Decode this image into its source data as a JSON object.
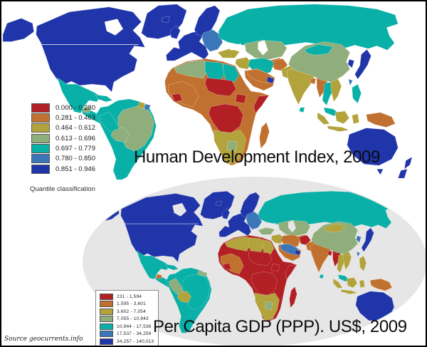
{
  "palette": {
    "q1_red": "#b22025",
    "q2_orange": "#c1712f",
    "q3_olive": "#b3a33c",
    "q4_sage": "#8fae7c",
    "q5_teal": "#09b0a7",
    "q6_blue": "#3b76b8",
    "q7_darkblue": "#1f35a9",
    "ocean_top": "#ffffff",
    "globe_background": "#e6e6e6"
  },
  "hdi_map": {
    "title": "Human Development Index, 2009",
    "note": "Quantile classification",
    "legend": [
      {
        "range": "0.000 - 0.280",
        "color": "#b22025"
      },
      {
        "range": "0.281 - 0.463",
        "color": "#c1712f"
      },
      {
        "range": "0.464 - 0.612",
        "color": "#b3a33c"
      },
      {
        "range": "0.613 - 0.696",
        "color": "#8fae7c"
      },
      {
        "range": "0.697 - 0.779",
        "color": "#09b0a7"
      },
      {
        "range": "0.780 - 0.850",
        "color": "#3b76b8"
      },
      {
        "range": "0.851 - 0.946",
        "color": "#1f35a9"
      }
    ]
  },
  "gdp_map": {
    "title": "Per Capita GDP (PPP). US$, 2009",
    "legend": [
      {
        "range": "231 - 1,594",
        "color": "#b22025"
      },
      {
        "range": "1,595 - 3,601",
        "color": "#c1712f"
      },
      {
        "range": "3,602 - 7,054",
        "color": "#b3a33c"
      },
      {
        "range": "7,055 - 10,943",
        "color": "#8fae7c"
      },
      {
        "range": "10,944 - 17,536",
        "color": "#09b0a7"
      },
      {
        "range": "17,537 - 34,256",
        "color": "#3b76b8"
      },
      {
        "range": "34,257 - 140,013",
        "color": "#1f35a9"
      }
    ]
  },
  "source": "Source geocurrents.info",
  "regions": [
    {
      "id": "greenland",
      "hdi": "#1f35a9",
      "gdp": "#1f35a9"
    },
    {
      "id": "alaska",
      "hdi": "#1f35a9",
      "gdp": "#1f35a9"
    },
    {
      "id": "namain",
      "hdi": "#1f35a9",
      "gdp": "#1f35a9"
    },
    {
      "id": "hudson_bay",
      "hdi": "#ffffff",
      "gdp": "#e6e6e6"
    },
    {
      "id": "mexico",
      "hdi": "#09b0a7",
      "gdp": "#09b0a7"
    },
    {
      "id": "centralam",
      "hdi": "#09b0a7",
      "gdp": "#09b0a7"
    },
    {
      "id": "centralam_sage",
      "hdi": "#8fae7c",
      "gdp": "#c1712f"
    },
    {
      "id": "cuba",
      "hdi": "#09b0a7",
      "gdp": "#09b0a7"
    },
    {
      "id": "hispaniola",
      "hdi": "#8fae7c",
      "gdp": "#c1712f"
    },
    {
      "id": "southam_base",
      "hdi": "#09b0a7",
      "gdp": "#09b0a7"
    },
    {
      "id": "brazil",
      "hdi": "#8fae7c",
      "gdp": "#09b0a7"
    },
    {
      "id": "guyana",
      "hdi": "#b3a33c",
      "gdp": "#8fae7c"
    },
    {
      "id": "suriname",
      "hdi": "#3b76b8",
      "gdp": "#8fae7c"
    },
    {
      "id": "peru",
      "hdi": "#09b0a7",
      "gdp": "#8fae7c"
    },
    {
      "id": "bolivia",
      "hdi": "#8fae7c",
      "gdp": "#b3a33c"
    },
    {
      "id": "uk",
      "hdi": "#1f35a9",
      "gdp": "#1f35a9"
    },
    {
      "id": "iceland",
      "hdi": "#1f35a9",
      "gdp": "#1f35a9"
    },
    {
      "id": "europe_west",
      "hdi": "#1f35a9",
      "gdp": "#1f35a9"
    },
    {
      "id": "scandinavia",
      "hdi": "#1f35a9",
      "gdp": "#1f35a9"
    },
    {
      "id": "east_europe",
      "hdi": "#3b76b8",
      "gdp": "#3b76b8"
    },
    {
      "id": "russia",
      "hdi": "#09b0a7",
      "gdp": "#09b0a7"
    },
    {
      "id": "kazakh",
      "hdi": "#8fae7c",
      "gdp": "#8fae7c"
    },
    {
      "id": "centralasia",
      "hdi": "#c1712f",
      "gdp": "#c1712f"
    },
    {
      "id": "turkey",
      "hdi": "#b3a33c",
      "gdp": "#8fae7c"
    },
    {
      "id": "levant_iraq",
      "hdi": "#b3a33c",
      "gdp": "#b3a33c"
    },
    {
      "id": "iran",
      "hdi": "#09b0a7",
      "gdp": "#c1712f"
    },
    {
      "id": "afghan",
      "hdi": "#c1712f",
      "gdp": "#b22025"
    },
    {
      "id": "pakistan",
      "hdi": "#b3a33c",
      "gdp": "#c1712f"
    },
    {
      "id": "peninsula",
      "hdi": "#c1712f",
      "gdp": "#c1712f"
    },
    {
      "id": "saudi",
      "hdi": "#c1712f",
      "gdp": "#3b76b8"
    },
    {
      "id": "gulf_states",
      "hdi": "#1f35a9",
      "gdp": "#1f35a9"
    },
    {
      "id": "caspian",
      "hdi": "#ffffff",
      "gdp": "#e6e6e6"
    },
    {
      "id": "black_sea",
      "hdi": "#ffffff",
      "gdp": "#e6e6e6"
    },
    {
      "id": "india",
      "hdi": "#b3a33c",
      "gdp": "#c1712f"
    },
    {
      "id": "srilanka",
      "hdi": "#09b0a7",
      "gdp": "#09b0a7"
    },
    {
      "id": "bangladesh",
      "hdi": "#c1712f",
      "gdp": "#b22025"
    },
    {
      "id": "myanmar",
      "hdi": "#c1712f",
      "gdp": "#b22025"
    },
    {
      "id": "thailand",
      "hdi": "#09b0a7",
      "gdp": "#b3a33c"
    },
    {
      "id": "vietnam",
      "hdi": "#b3a33c",
      "gdp": "#b3a33c"
    },
    {
      "id": "malaysia",
      "hdi": "#09b0a7",
      "gdp": "#09b0a7"
    },
    {
      "id": "sumatra",
      "hdi": "#b3a33c",
      "gdp": "#b3a33c"
    },
    {
      "id": "java",
      "hdi": "#b3a33c",
      "gdp": "#b3a33c"
    },
    {
      "id": "borneo",
      "hdi": "#b3a33c",
      "gdp": "#b3a33c"
    },
    {
      "id": "sulawesi",
      "hdi": "#b3a33c",
      "gdp": "#b3a33c"
    },
    {
      "id": "papua",
      "hdi": "#c1712f",
      "gdp": "#c1712f"
    },
    {
      "id": "philippines",
      "hdi": "#09b0a7",
      "gdp": "#b3a33c"
    },
    {
      "id": "china",
      "hdi": "#8fae7c",
      "gdp": "#8fae7c"
    },
    {
      "id": "mongolia",
      "hdi": "#09b0a7",
      "gdp": "#b3a33c"
    },
    {
      "id": "korea",
      "hdi": "#1f35a9",
      "gdp": "#3b76b8"
    },
    {
      "id": "japan",
      "hdi": "#1f35a9",
      "gdp": "#1f35a9"
    },
    {
      "id": "taiwan",
      "hdi": "#3b76b8",
      "gdp": "#3b76b8"
    },
    {
      "id": "africa_base",
      "hdi": "#c1712f",
      "gdp": "#b22025"
    },
    {
      "id": "maghreb",
      "hdi": "#8fae7c",
      "gdp": "#b3a33c"
    },
    {
      "id": "libya",
      "hdi": "#09b0a7",
      "gdp": "#b3a33c"
    },
    {
      "id": "egypt",
      "hdi": "#09b0a7",
      "gdp": "#b3a33c"
    },
    {
      "id": "westafrica",
      "hdi": "#c1712f",
      "gdp": "#c1712f"
    },
    {
      "id": "sahel_red",
      "hdi": "#b22025",
      "gdp": "#b22025"
    },
    {
      "id": "ssudan",
      "hdi": "#b22025",
      "gdp": "#b22025"
    },
    {
      "id": "guinea_dot",
      "hdi": "#b22025",
      "gdp": "#b22025"
    },
    {
      "id": "central_africa",
      "hdi": "#b22025",
      "gdp": "#b22025"
    },
    {
      "id": "somalia",
      "hdi": "#b22025",
      "gdp": "#b22025"
    },
    {
      "id": "southern_africa",
      "hdi": "#b3a33c",
      "gdp": "#b3a33c"
    },
    {
      "id": "botswana",
      "hdi": "#8fae7c",
      "gdp": "#8fae7c"
    },
    {
      "id": "madagascar",
      "hdi": "#c1712f",
      "gdp": "#b22025"
    },
    {
      "id": "australia",
      "hdi": "#1f35a9",
      "gdp": "#1f35a9"
    },
    {
      "id": "tasmania",
      "hdi": "#1f35a9",
      "gdp": "#1f35a9"
    },
    {
      "id": "nz_north",
      "hdi": "#1f35a9",
      "gdp": "#1f35a9"
    },
    {
      "id": "nz_south",
      "hdi": "#1f35a9",
      "gdp": "#1f35a9"
    }
  ]
}
